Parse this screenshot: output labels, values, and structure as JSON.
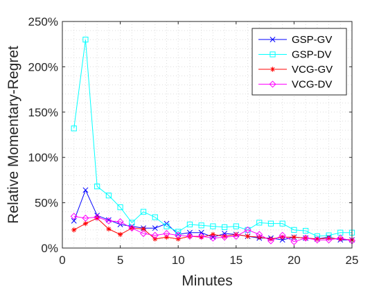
{
  "chart_data": {
    "type": "line",
    "title": "",
    "xlabel": "Minutes",
    "ylabel": "Relative Momentary-Regret",
    "xlim": [
      0,
      25
    ],
    "ylim": [
      0,
      2.5
    ],
    "x_ticks": [
      0,
      5,
      10,
      15,
      20,
      25
    ],
    "y_ticks": [
      0,
      0.5,
      1.0,
      1.5,
      2.0,
      2.5
    ],
    "y_tick_labels": [
      "0%",
      "50%",
      "100%",
      "150%",
      "200%",
      "250%"
    ],
    "x_tick_labels": [
      "0",
      "5",
      "10",
      "15",
      "20",
      "25"
    ],
    "grid": "dotted",
    "legend_position": "top-right",
    "x": [
      1,
      2,
      3,
      4,
      5,
      6,
      7,
      8,
      9,
      10,
      11,
      12,
      13,
      14,
      15,
      16,
      17,
      18,
      19,
      20,
      21,
      22,
      23,
      24,
      25
    ],
    "series": [
      {
        "name": "GSP-GV",
        "color": "#0000ff",
        "marker": "x",
        "values": [
          0.3,
          0.64,
          0.36,
          0.31,
          0.26,
          0.24,
          0.22,
          0.22,
          0.27,
          0.15,
          0.17,
          0.17,
          0.12,
          0.16,
          0.15,
          0.13,
          0.11,
          0.11,
          0.09,
          0.12,
          0.11,
          0.1,
          0.12,
          0.09,
          0.09
        ]
      },
      {
        "name": "GSP-DV",
        "color": "#00ffff",
        "marker": "square",
        "values": [
          1.32,
          2.3,
          0.68,
          0.58,
          0.45,
          0.28,
          0.4,
          0.34,
          0.24,
          0.18,
          0.26,
          0.25,
          0.24,
          0.23,
          0.24,
          0.2,
          0.28,
          0.27,
          0.27,
          0.2,
          0.19,
          0.13,
          0.14,
          0.17,
          0.17
        ]
      },
      {
        "name": "VCG-GV",
        "color": "#ff0000",
        "marker": "asterisk",
        "values": [
          0.2,
          0.27,
          0.33,
          0.21,
          0.15,
          0.22,
          0.21,
          0.1,
          0.12,
          0.1,
          0.13,
          0.12,
          0.15,
          0.13,
          0.15,
          0.13,
          0.12,
          0.1,
          0.12,
          0.12,
          0.11,
          0.1,
          0.11,
          0.1,
          0.09
        ]
      },
      {
        "name": "VCG-DV",
        "color": "#ff00ff",
        "marker": "diamond",
        "values": [
          0.35,
          0.33,
          0.34,
          0.3,
          0.29,
          0.22,
          0.16,
          0.14,
          0.16,
          0.14,
          0.13,
          0.13,
          0.11,
          0.12,
          0.13,
          0.2,
          0.15,
          0.08,
          0.14,
          0.07,
          0.11,
          0.09,
          0.09,
          0.11,
          0.08
        ]
      }
    ]
  }
}
